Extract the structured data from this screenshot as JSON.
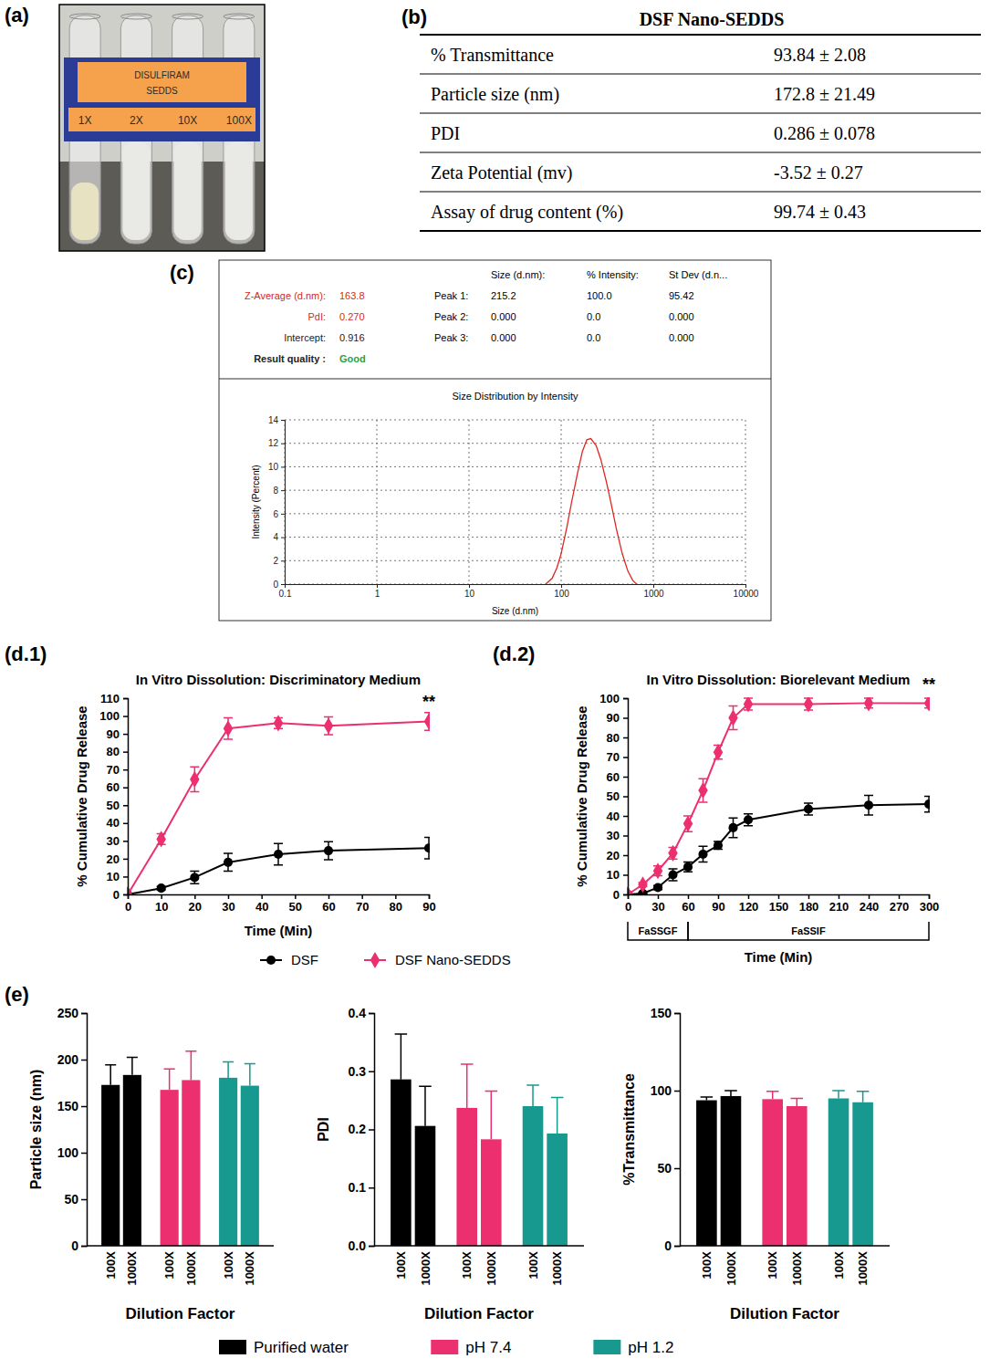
{
  "panel_labels": [
    "(a)",
    "(b)",
    "(c)",
    "(d.1)",
    "(d.2)",
    "(e)"
  ],
  "photo": {
    "header": [
      "DISULFIRAM",
      "SEDDS"
    ],
    "tubes": [
      "1X",
      "2X",
      "10X",
      "100X"
    ]
  },
  "table": {
    "title": "DSF Nano-SEDDS",
    "rows": [
      [
        "% Transmittance",
        "93.84 ± 2.08"
      ],
      [
        "Particle size (nm)",
        "172.8 ± 21.49"
      ],
      [
        "PDI",
        "0.286 ± 0.078"
      ],
      [
        "Zeta Potential (mv)",
        "-3.52 ± 0.27"
      ],
      [
        "Assay of drug content (%)",
        "99.74 ± 0.43"
      ]
    ]
  },
  "zetasizer": {
    "summary": [
      {
        "label": "Z-Average (d.nm):",
        "value": "163.8"
      },
      {
        "label": "PdI:",
        "value": "0.270"
      },
      {
        "label": "Intercept:",
        "value": "0.916"
      },
      {
        "label": "Result quality :",
        "value": "Good"
      }
    ],
    "columns": [
      "Size (d.nm):",
      "% Intensity:",
      "St Dev (d.n..."
    ],
    "peaks": [
      {
        "label": "Peak 1:",
        "values": [
          "215.2",
          "100.0",
          "95.42"
        ]
      },
      {
        "label": "Peak 2:",
        "values": [
          "0.000",
          "0.0",
          "0.000"
        ]
      },
      {
        "label": "Peak 3:",
        "values": [
          "0.000",
          "0.0",
          "0.000"
        ]
      }
    ]
  },
  "chart_data": [
    {
      "type": "line",
      "title": "Size Distribution by Intensity",
      "x_label": "Size (d.nm)",
      "y_label": "Intensity (Percent)",
      "log": "x",
      "grid": true,
      "x": [
        68,
        80,
        90,
        100,
        115,
        130,
        150,
        170,
        190,
        210,
        240,
        270,
        310,
        350,
        400,
        460,
        530,
        600,
        660
      ],
      "series": [
        {
          "color": "#e0261f",
          "line_style": "solid",
          "values": [
            0,
            0.5,
            1.4,
            2.6,
            4.8,
            7.0,
            9.4,
            11.3,
            12.3,
            12.4,
            11.8,
            10.6,
            8.7,
            6.8,
            4.6,
            2.6,
            1.1,
            0.3,
            0
          ]
        }
      ],
      "xlim": [
        0.1,
        10000
      ],
      "xticks": [
        0.1,
        1,
        10,
        100,
        1000,
        10000
      ],
      "ylim": [
        0,
        14
      ],
      "yticks": [
        0,
        2,
        4,
        6,
        8,
        10,
        12,
        14
      ]
    },
    {
      "type": "line",
      "title": "In Vitro Dissolution: Discriminatory Medium",
      "x_label": "Time (Min)",
      "y_label": "% Cumulative Drug Release",
      "grid": false,
      "legend": "bottom",
      "x": [
        0,
        10,
        20,
        30,
        45,
        60,
        90
      ],
      "series": [
        {
          "name": "DSF",
          "color": "#000000",
          "marker": "circle",
          "line_style": "solid",
          "values": [
            0,
            3.5,
            9.5,
            18,
            22.5,
            24.5,
            26
          ],
          "errors": [
            0,
            1,
            3.5,
            5,
            6,
            5,
            6
          ]
        },
        {
          "name": "DSF Nano-SEDDS",
          "color": "#ec2f6e",
          "marker": "diamond",
          "line_style": "solid",
          "values": [
            0,
            31,
            64.5,
            93,
            96,
            94.5,
            97
          ],
          "errors": [
            0,
            3,
            7,
            6,
            3,
            5,
            5
          ]
        }
      ],
      "xlim": [
        0,
        90
      ],
      "xticks": [
        0,
        10,
        20,
        30,
        40,
        50,
        60,
        70,
        80,
        90
      ],
      "ylim": [
        0,
        110
      ],
      "yticks": [
        0,
        10,
        20,
        30,
        40,
        50,
        60,
        70,
        80,
        90,
        100,
        110
      ],
      "annotations": [
        {
          "text": "**",
          "x": 90,
          "y": 105
        }
      ]
    },
    {
      "type": "line",
      "title": "In Vitro Dissolution: Biorelevant Medium",
      "x_label": "Time (Min)",
      "y_label": "% Cumulative Drug Release",
      "grid": false,
      "x": [
        0,
        15,
        30,
        45,
        60,
        75,
        90,
        105,
        120,
        180,
        240,
        300
      ],
      "series": [
        {
          "color": "#000000",
          "marker": "circle",
          "line_style": "solid",
          "values": [
            0,
            0.5,
            3.5,
            10,
            14,
            20.5,
            25,
            34,
            38,
            43.5,
            45.5,
            46
          ],
          "errors": [
            0,
            0.5,
            1,
            3,
            2.5,
            4,
            2,
            5,
            3,
            3,
            5,
            4
          ]
        },
        {
          "color": "#ec2f6e",
          "marker": "diamond",
          "line_style": "solid",
          "values": [
            0,
            5,
            12,
            21,
            36,
            53,
            72.5,
            90,
            97,
            97,
            97.5,
            97.5
          ],
          "errors": [
            0,
            1,
            2.5,
            3,
            4,
            6,
            3.5,
            6,
            3,
            3,
            2.5,
            2.5
          ]
        }
      ],
      "xlim": [
        0,
        300
      ],
      "xticks": [
        0,
        30,
        60,
        90,
        120,
        150,
        180,
        210,
        240,
        270,
        300
      ],
      "ylim": [
        0,
        100
      ],
      "yticks": [
        0,
        10,
        20,
        30,
        40,
        50,
        60,
        70,
        80,
        90,
        100
      ],
      "annotations": [
        {
          "text": "**",
          "x": 300,
          "y": 104
        }
      ],
      "phases": [
        {
          "label": "FaSSGF",
          "start": 0,
          "end": 60
        },
        {
          "label": "FaSSIF",
          "start": 60,
          "end": 300
        }
      ]
    },
    {
      "type": "bar",
      "y_label": "Particle size (nm)",
      "x_label": "Dilution Factor",
      "legend": "bottom",
      "categories": [
        "100X",
        "1000X"
      ],
      "series": [
        {
          "name": "Purified water",
          "color": "#000000",
          "values": [
            172.8,
            183.5
          ],
          "errors": [
            21.5,
            19
          ]
        },
        {
          "name": "pH 7.4",
          "color": "#ec2f6e",
          "values": [
            167.5,
            178
          ],
          "errors": [
            22.5,
            31
          ]
        },
        {
          "name": "pH 1.2",
          "color": "#17998f",
          "values": [
            180.5,
            172
          ],
          "errors": [
            17,
            23.5
          ]
        }
      ],
      "ylim": [
        0,
        250
      ],
      "yticks": [
        0,
        50,
        100,
        150,
        200,
        250
      ]
    },
    {
      "type": "bar",
      "y_label": "PDI",
      "x_label": "Dilution Factor",
      "categories": [
        "100X",
        "1000X"
      ],
      "series": [
        {
          "color": "#000000",
          "values": [
            0.286,
            0.206
          ],
          "errors": [
            0.078,
            0.068
          ]
        },
        {
          "color": "#ec2f6e",
          "values": [
            0.237,
            0.183
          ],
          "errors": [
            0.075,
            0.083
          ]
        },
        {
          "color": "#17998f",
          "values": [
            0.24,
            0.193
          ],
          "errors": [
            0.036,
            0.062
          ]
        }
      ],
      "ylim": [
        0,
        0.4
      ],
      "yticks": [
        {
          "value": 0,
          "label": "0.0"
        },
        0.1,
        0.2,
        0.3,
        0.4
      ]
    },
    {
      "type": "bar",
      "y_label": "%Transmittance",
      "x_label": "Dilution Factor",
      "categories": [
        "100X",
        "1000X"
      ],
      "series": [
        {
          "color": "#000000",
          "values": [
            93.8,
            96.5
          ],
          "errors": [
            2.1,
            3.5
          ]
        },
        {
          "color": "#ec2f6e",
          "values": [
            94.5,
            90
          ],
          "errors": [
            5,
            5
          ]
        },
        {
          "color": "#17998f",
          "values": [
            95,
            92.5
          ],
          "errors": [
            5,
            7
          ]
        }
      ],
      "ylim": [
        0,
        150
      ],
      "yticks": [
        0,
        50,
        100,
        150
      ]
    }
  ]
}
